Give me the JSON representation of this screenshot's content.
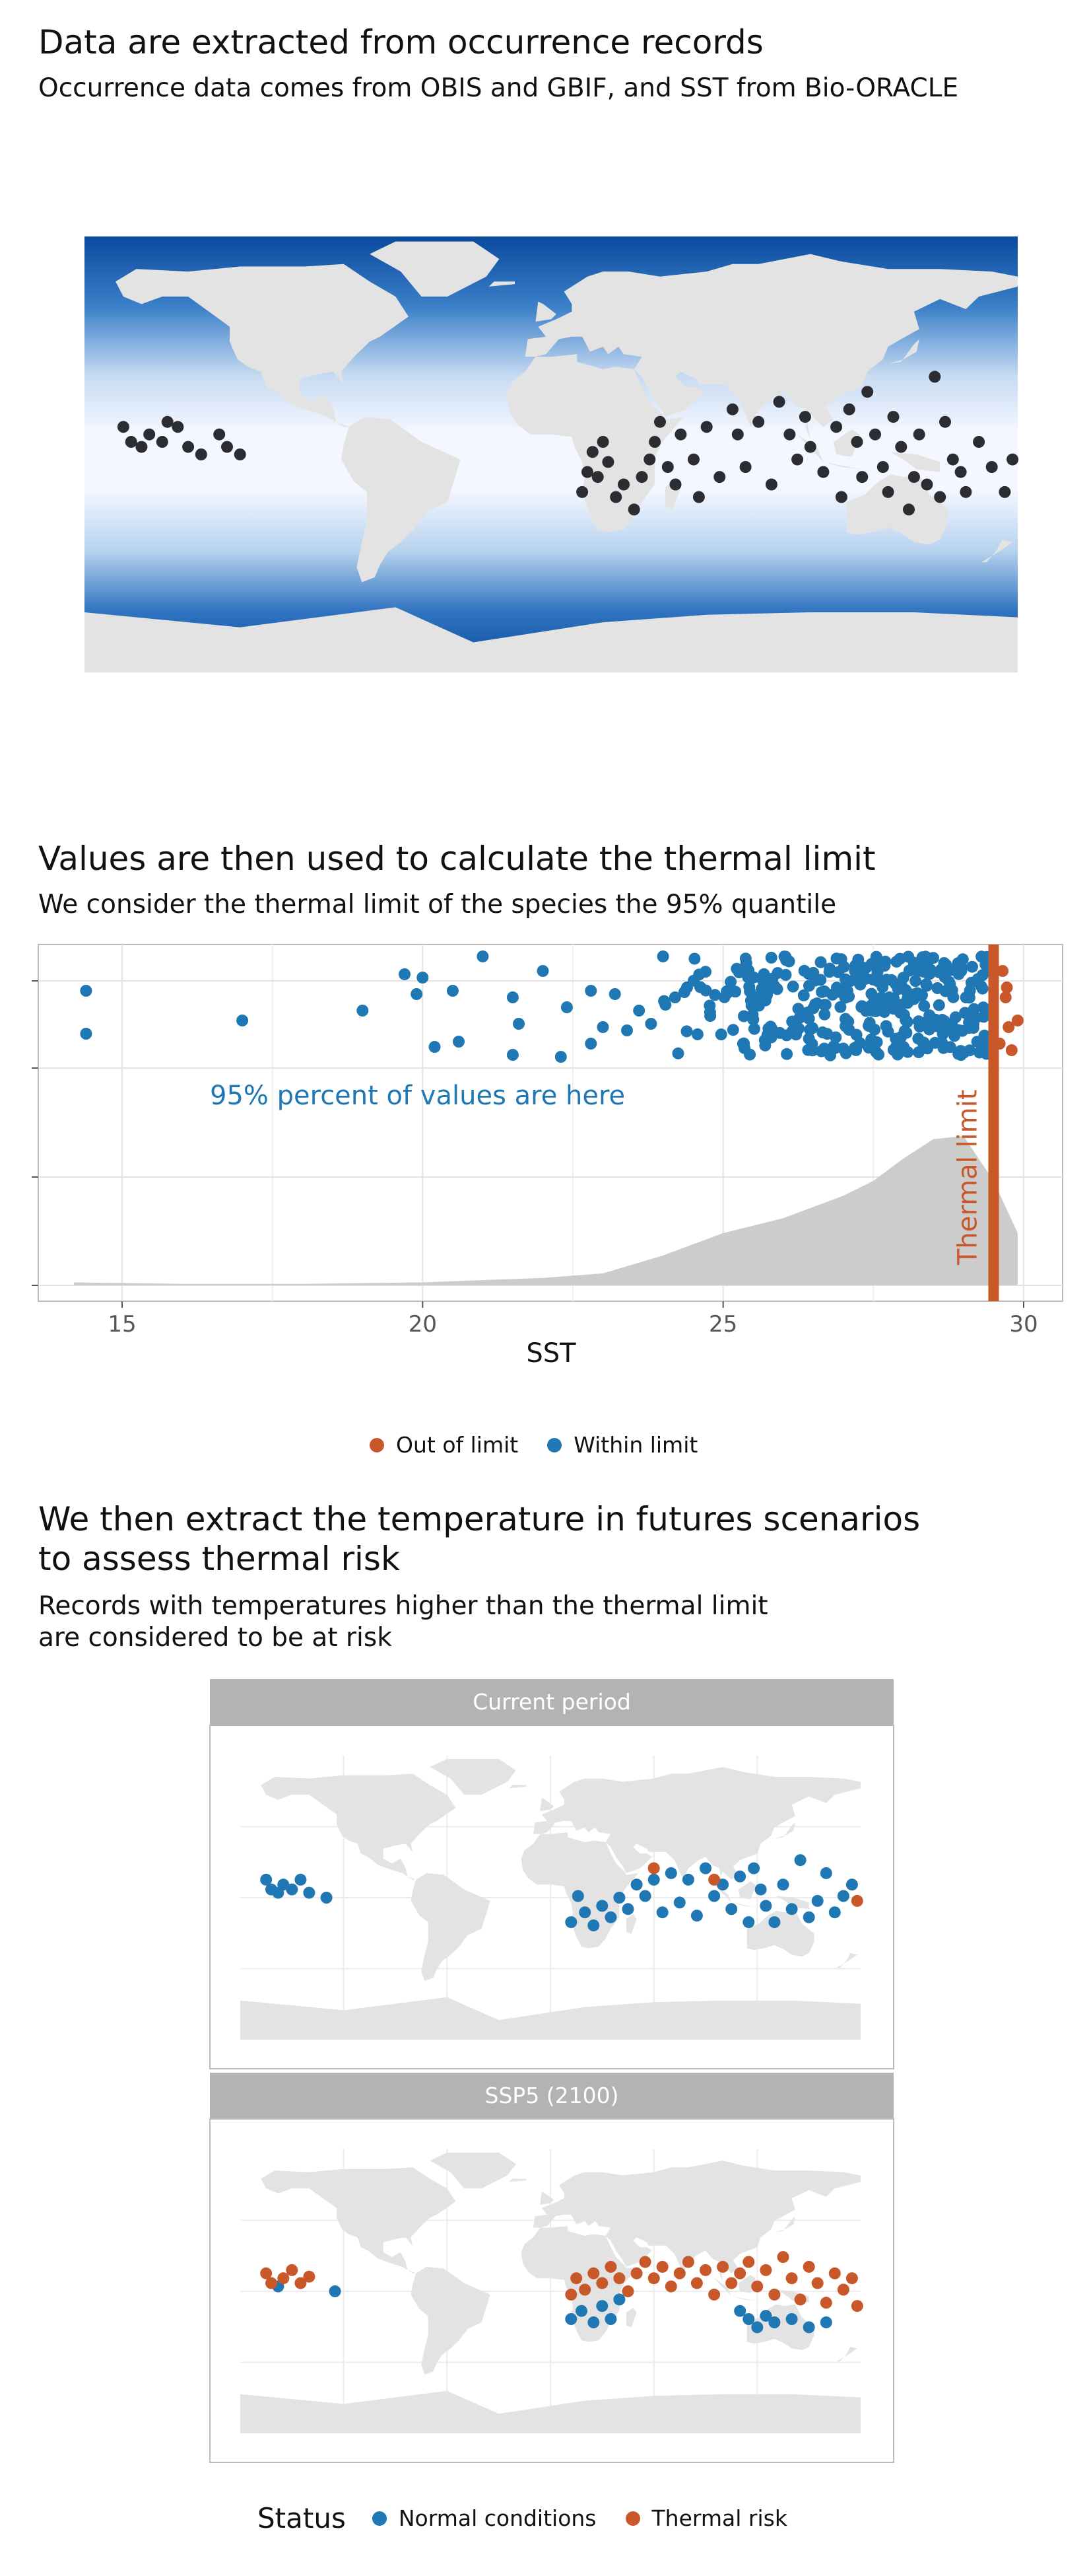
{
  "section1": {
    "title": "Data are extracted from occurrence records",
    "subtitle": "Occurrence data comes from OBIS and GBIF, and SST from Bio-ORACLE"
  },
  "section2": {
    "title": "Values are then used to calculate the thermal limit",
    "subtitle": "We consider the thermal limit of the species the 95% quantile",
    "annotation": "95% percent of values are here",
    "limit_label": "Thermal limit"
  },
  "section3": {
    "title": "We then extract the temperature in futures scenarios\n to assess thermal risk",
    "subtitle": "Records with temperatures higher than the thermal limit\n are considered to be at risk",
    "panels": [
      "Current period",
      "SSP5 (2100)"
    ]
  },
  "legend1": {
    "items": [
      {
        "label": "Out of limit",
        "color": "#c8582a"
      },
      {
        "label": "Within limit",
        "color": "#1f77b4"
      }
    ]
  },
  "legend2": {
    "title": "Status",
    "items": [
      {
        "label": "Normal conditions",
        "color": "#1f77b4"
      },
      {
        "label": "Thermal risk",
        "color": "#c8582a"
      }
    ]
  },
  "colors": {
    "within": "#1f77b4",
    "out": "#c8582a",
    "occurrence": "#2b2d33",
    "density": "#cccccc",
    "land": "#e3e3e3",
    "sst_cold": "#0b4a9e",
    "sst_warm": "#f4f7ff"
  },
  "chart_data": [
    {
      "type": "map",
      "title": "Data are extracted from occurrence records",
      "subtitle": "Occurrence data comes from OBIS and GBIF, and SST from Bio-ORACLE",
      "background": "sea surface temperature gradient",
      "occurrences": [
        [
          -165,
          8
        ],
        [
          -162,
          2
        ],
        [
          -158,
          0
        ],
        [
          -155,
          5
        ],
        [
          -150,
          2
        ],
        [
          -148,
          10
        ],
        [
          -144,
          8
        ],
        [
          -140,
          0
        ],
        [
          -135,
          -3
        ],
        [
          -128,
          5
        ],
        [
          -125,
          0
        ],
        [
          -120,
          -3
        ],
        [
          12,
          -18
        ],
        [
          14,
          -10
        ],
        [
          16,
          -2
        ],
        [
          18,
          -12
        ],
        [
          20,
          2
        ],
        [
          22,
          -6
        ],
        [
          25,
          -20
        ],
        [
          28,
          -15
        ],
        [
          32,
          -25
        ],
        [
          35,
          -12
        ],
        [
          38,
          -5
        ],
        [
          40,
          2
        ],
        [
          42,
          10
        ],
        [
          45,
          -8
        ],
        [
          48,
          -15
        ],
        [
          50,
          5
        ],
        [
          55,
          -5
        ],
        [
          57,
          -20
        ],
        [
          60,
          8
        ],
        [
          65,
          -12
        ],
        [
          70,
          15
        ],
        [
          72,
          5
        ],
        [
          75,
          -8
        ],
        [
          80,
          10
        ],
        [
          85,
          -15
        ],
        [
          88,
          18
        ],
        [
          92,
          5
        ],
        [
          95,
          -5
        ],
        [
          98,
          12
        ],
        [
          100,
          0
        ],
        [
          105,
          -10
        ],
        [
          110,
          8
        ],
        [
          112,
          -20
        ],
        [
          115,
          15
        ],
        [
          118,
          2
        ],
        [
          120,
          -12
        ],
        [
          122,
          22
        ],
        [
          125,
          5
        ],
        [
          128,
          -8
        ],
        [
          130,
          -18
        ],
        [
          132,
          12
        ],
        [
          135,
          0
        ],
        [
          138,
          -25
        ],
        [
          140,
          -12
        ],
        [
          142,
          5
        ],
        [
          145,
          -15
        ],
        [
          148,
          28
        ],
        [
          150,
          -20
        ],
        [
          152,
          10
        ],
        [
          155,
          -5
        ],
        [
          158,
          -10
        ],
        [
          160,
          -18
        ],
        [
          165,
          2
        ],
        [
          170,
          -8
        ],
        [
          175,
          -18
        ],
        [
          178,
          -5
        ]
      ]
    },
    {
      "type": "scatter",
      "title": "Values are then used to calculate the thermal limit",
      "subtitle": "We consider the thermal limit of the species the 95% quantile",
      "xlabel": "SST",
      "xlim": [
        14,
        30.5
      ],
      "x_ticks": [
        15,
        20,
        25,
        30
      ],
      "grid": true,
      "thermal_limit": 29.5,
      "within_sst": [
        14.4,
        14.4,
        17,
        19,
        19.6,
        19.9,
        20,
        20.2,
        20.4,
        20.6,
        21.5,
        21.7,
        22,
        22.3,
        22.8,
        23,
        23.2,
        23.6,
        23.8,
        24,
        24.2,
        24.4,
        24.6,
        24.8,
        25,
        25.2,
        25.4,
        25.6,
        25.8,
        26,
        26.2,
        26.4,
        26.6,
        26.8,
        27,
        27.2,
        27.4,
        27.6,
        27.8,
        28,
        28.2,
        28.4,
        28.6,
        28.8,
        29,
        29.2,
        29.4
      ],
      "out_sst": [
        29.6,
        29.7,
        29.8,
        29.9
      ],
      "density": {
        "x": [
          14.2,
          16,
          18,
          20,
          22,
          23,
          24,
          25,
          26,
          27,
          27.5,
          28,
          28.5,
          29,
          29.5,
          29.9
        ],
        "y": [
          0.02,
          0.01,
          0.01,
          0.02,
          0.05,
          0.08,
          0.2,
          0.35,
          0.45,
          0.6,
          0.7,
          0.85,
          0.98,
          1,
          0.7,
          0.35
        ]
      },
      "annotation": "95% percent of values are here",
      "limit_label": "Thermal limit",
      "legend": [
        "Out of limit",
        "Within limit"
      ]
    },
    {
      "type": "map",
      "panel": "Current period",
      "normal": [
        [
          -165,
          8
        ],
        [
          -162,
          2
        ],
        [
          -158,
          0
        ],
        [
          -155,
          5
        ],
        [
          -150,
          2
        ],
        [
          -145,
          8
        ],
        [
          -140,
          0
        ],
        [
          -130,
          -3
        ],
        [
          12,
          -18
        ],
        [
          16,
          -2
        ],
        [
          20,
          -12
        ],
        [
          25,
          -20
        ],
        [
          30,
          -8
        ],
        [
          35,
          -15
        ],
        [
          40,
          -3
        ],
        [
          45,
          -10
        ],
        [
          50,
          5
        ],
        [
          55,
          -2
        ],
        [
          60,
          8
        ],
        [
          65,
          -12
        ],
        [
          70,
          12
        ],
        [
          75,
          -6
        ],
        [
          80,
          8
        ],
        [
          85,
          -14
        ],
        [
          90,
          15
        ],
        [
          95,
          -2
        ],
        [
          100,
          5
        ],
        [
          105,
          -10
        ],
        [
          110,
          10
        ],
        [
          115,
          -18
        ],
        [
          118,
          15
        ],
        [
          122,
          2
        ],
        [
          125,
          -8
        ],
        [
          130,
          -18
        ],
        [
          135,
          5
        ],
        [
          140,
          -10
        ],
        [
          145,
          20
        ],
        [
          150,
          -15
        ],
        [
          155,
          -5
        ],
        [
          160,
          12
        ],
        [
          165,
          -12
        ],
        [
          170,
          -2
        ],
        [
          175,
          5
        ]
      ],
      "risk": [
        [
          60,
          15
        ],
        [
          95,
          8
        ],
        [
          178,
          -5
        ]
      ]
    },
    {
      "type": "map",
      "panel": "SSP5 (2100)",
      "normal": [
        [
          -158,
          0
        ],
        [
          -125,
          -3
        ],
        [
          12,
          -20
        ],
        [
          18,
          -15
        ],
        [
          25,
          -22
        ],
        [
          30,
          -12
        ],
        [
          35,
          -20
        ],
        [
          40,
          -8
        ],
        [
          110,
          -15
        ],
        [
          115,
          -20
        ],
        [
          120,
          -25
        ],
        [
          125,
          -18
        ],
        [
          130,
          -22
        ],
        [
          140,
          -20
        ],
        [
          150,
          -25
        ],
        [
          160,
          -22
        ]
      ],
      "risk": [
        [
          -165,
          8
        ],
        [
          -162,
          2
        ],
        [
          -155,
          5
        ],
        [
          -150,
          10
        ],
        [
          -145,
          2
        ],
        [
          -140,
          6
        ],
        [
          12,
          -5
        ],
        [
          15,
          5
        ],
        [
          20,
          -2
        ],
        [
          25,
          8
        ],
        [
          30,
          2
        ],
        [
          35,
          12
        ],
        [
          40,
          5
        ],
        [
          45,
          -3
        ],
        [
          50,
          8
        ],
        [
          55,
          15
        ],
        [
          60,
          5
        ],
        [
          65,
          12
        ],
        [
          70,
          0
        ],
        [
          75,
          8
        ],
        [
          80,
          15
        ],
        [
          85,
          2
        ],
        [
          90,
          10
        ],
        [
          95,
          -5
        ],
        [
          100,
          12
        ],
        [
          105,
          2
        ],
        [
          110,
          8
        ],
        [
          115,
          15
        ],
        [
          120,
          0
        ],
        [
          125,
          10
        ],
        [
          130,
          -5
        ],
        [
          135,
          18
        ],
        [
          140,
          5
        ],
        [
          145,
          -8
        ],
        [
          150,
          12
        ],
        [
          155,
          2
        ],
        [
          160,
          -10
        ],
        [
          165,
          8
        ],
        [
          170,
          -2
        ],
        [
          175,
          5
        ],
        [
          178,
          -12
        ]
      ]
    }
  ]
}
